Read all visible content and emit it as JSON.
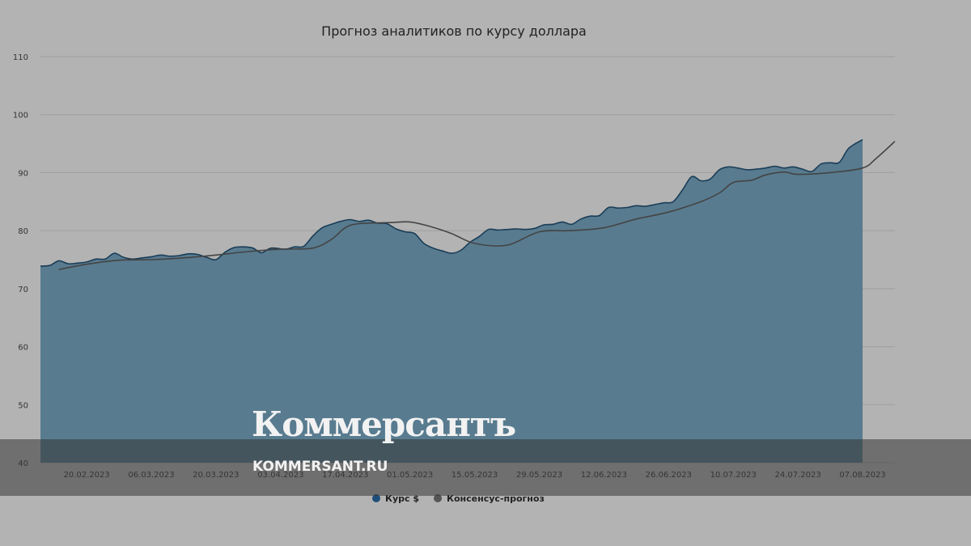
{
  "watermark": {
    "logo": "Коммерсантъ",
    "site": "KOMMERSANT.RU"
  },
  "chart_data": {
    "type": "area",
    "title": "Прогноз аналитиков по курсу доллара",
    "xlabel": "",
    "ylabel": "",
    "ylim": [
      40,
      110
    ],
    "yticks": [
      40,
      50,
      60,
      70,
      80,
      90,
      100,
      110
    ],
    "xlim": [
      "2023-02-10",
      "2023-08-14"
    ],
    "xticks": [
      "20.02.2023",
      "06.03.2023",
      "20.03.2023",
      "03.04.2023",
      "17.04.2023",
      "01.05.2023",
      "15.05.2023",
      "29.05.2023",
      "12.06.2023",
      "26.06.2023",
      "10.07.2023",
      "24.07.2023",
      "07.08.2023"
    ],
    "grid": true,
    "legend_position": "bottom",
    "colors": {
      "area_fill": "#587b8f",
      "area_line": "#1a3d57",
      "forecast_line": "#444444",
      "legend_usd": "#1f4e79",
      "legend_forecast": "#555555"
    },
    "series": [
      {
        "name": "Курс $",
        "kind": "area",
        "points": [
          [
            "2023-02-10",
            73.9
          ],
          [
            "2023-02-12",
            74.0
          ],
          [
            "2023-02-14",
            74.8
          ],
          [
            "2023-02-16",
            74.3
          ],
          [
            "2023-02-18",
            74.4
          ],
          [
            "2023-02-20",
            74.6
          ],
          [
            "2023-02-22",
            75.1
          ],
          [
            "2023-02-24",
            75.1
          ],
          [
            "2023-02-26",
            76.1
          ],
          [
            "2023-02-28",
            75.4
          ],
          [
            "2023-03-02",
            75.1
          ],
          [
            "2023-03-04",
            75.3
          ],
          [
            "2023-03-06",
            75.5
          ],
          [
            "2023-03-08",
            75.8
          ],
          [
            "2023-03-10",
            75.6
          ],
          [
            "2023-03-12",
            75.7
          ],
          [
            "2023-03-14",
            76.0
          ],
          [
            "2023-03-16",
            75.9
          ],
          [
            "2023-03-18",
            75.4
          ],
          [
            "2023-03-20",
            75.0
          ],
          [
            "2023-03-22",
            76.3
          ],
          [
            "2023-03-24",
            77.1
          ],
          [
            "2023-03-26",
            77.2
          ],
          [
            "2023-03-28",
            77.0
          ],
          [
            "2023-03-29",
            76.5
          ],
          [
            "2023-03-30",
            76.2
          ],
          [
            "2023-04-01",
            77.0
          ],
          [
            "2023-04-04",
            76.8
          ],
          [
            "2023-04-06",
            77.2
          ],
          [
            "2023-04-08",
            77.3
          ],
          [
            "2023-04-10",
            79.1
          ],
          [
            "2023-04-12",
            80.5
          ],
          [
            "2023-04-14",
            81.1
          ],
          [
            "2023-04-16",
            81.6
          ],
          [
            "2023-04-18",
            81.9
          ],
          [
            "2023-04-20",
            81.6
          ],
          [
            "2023-04-22",
            81.8
          ],
          [
            "2023-04-24",
            81.3
          ],
          [
            "2023-04-26",
            81.2
          ],
          [
            "2023-04-28",
            80.3
          ],
          [
            "2023-04-30",
            79.8
          ],
          [
            "2023-05-02",
            79.5
          ],
          [
            "2023-05-04",
            77.8
          ],
          [
            "2023-05-06",
            77.0
          ],
          [
            "2023-05-08",
            76.5
          ],
          [
            "2023-05-10",
            76.1
          ],
          [
            "2023-05-12",
            76.6
          ],
          [
            "2023-05-14",
            78.0
          ],
          [
            "2023-05-16",
            79.0
          ],
          [
            "2023-05-18",
            80.2
          ],
          [
            "2023-05-20",
            80.1
          ],
          [
            "2023-05-22",
            80.2
          ],
          [
            "2023-05-24",
            80.3
          ],
          [
            "2023-05-26",
            80.2
          ],
          [
            "2023-05-28",
            80.4
          ],
          [
            "2023-05-30",
            81.0
          ],
          [
            "2023-06-01",
            81.1
          ],
          [
            "2023-06-03",
            81.5
          ],
          [
            "2023-06-05",
            81.1
          ],
          [
            "2023-06-07",
            82.0
          ],
          [
            "2023-06-09",
            82.5
          ],
          [
            "2023-06-11",
            82.6
          ],
          [
            "2023-06-13",
            84.0
          ],
          [
            "2023-06-15",
            83.9
          ],
          [
            "2023-06-17",
            84.0
          ],
          [
            "2023-06-19",
            84.3
          ],
          [
            "2023-06-21",
            84.2
          ],
          [
            "2023-06-23",
            84.5
          ],
          [
            "2023-06-25",
            84.8
          ],
          [
            "2023-06-27",
            85.0
          ],
          [
            "2023-06-29",
            87.0
          ],
          [
            "2023-07-01",
            89.3
          ],
          [
            "2023-07-03",
            88.6
          ],
          [
            "2023-07-05",
            88.9
          ],
          [
            "2023-07-07",
            90.5
          ],
          [
            "2023-07-09",
            91.0
          ],
          [
            "2023-07-11",
            90.8
          ],
          [
            "2023-07-13",
            90.5
          ],
          [
            "2023-07-15",
            90.6
          ],
          [
            "2023-07-17",
            90.8
          ],
          [
            "2023-07-19",
            91.1
          ],
          [
            "2023-07-21",
            90.8
          ],
          [
            "2023-07-23",
            91.0
          ],
          [
            "2023-07-25",
            90.6
          ],
          [
            "2023-07-27",
            90.2
          ],
          [
            "2023-07-29",
            91.5
          ],
          [
            "2023-07-31",
            91.7
          ],
          [
            "2023-08-02",
            91.8
          ],
          [
            "2023-08-04",
            94.2
          ],
          [
            "2023-08-07",
            95.7
          ]
        ]
      },
      {
        "name": "Консенсус-прогноз",
        "kind": "line",
        "points": [
          [
            "2023-02-14",
            73.3
          ],
          [
            "2023-02-20",
            74.2
          ],
          [
            "2023-02-27",
            74.9
          ],
          [
            "2023-03-06",
            75.0
          ],
          [
            "2023-03-13",
            75.3
          ],
          [
            "2023-03-20",
            75.8
          ],
          [
            "2023-03-27",
            76.4
          ],
          [
            "2023-04-03",
            76.8
          ],
          [
            "2023-04-10",
            77.0
          ],
          [
            "2023-04-14",
            78.5
          ],
          [
            "2023-04-17",
            80.5
          ],
          [
            "2023-04-20",
            81.2
          ],
          [
            "2023-04-27",
            81.4
          ],
          [
            "2023-05-01",
            81.5
          ],
          [
            "2023-05-05",
            80.8
          ],
          [
            "2023-05-10",
            79.5
          ],
          [
            "2023-05-15",
            77.8
          ],
          [
            "2023-05-22",
            77.5
          ],
          [
            "2023-05-29",
            79.8
          ],
          [
            "2023-06-05",
            80.0
          ],
          [
            "2023-06-12",
            80.5
          ],
          [
            "2023-06-19",
            82.0
          ],
          [
            "2023-06-26",
            83.2
          ],
          [
            "2023-07-03",
            85.0
          ],
          [
            "2023-07-07",
            86.5
          ],
          [
            "2023-07-10",
            88.3
          ],
          [
            "2023-07-14",
            88.7
          ],
          [
            "2023-07-17",
            89.6
          ],
          [
            "2023-07-21",
            90.1
          ],
          [
            "2023-07-24",
            89.7
          ],
          [
            "2023-07-31",
            90.0
          ],
          [
            "2023-08-07",
            90.8
          ],
          [
            "2023-08-10",
            92.5
          ],
          [
            "2023-08-14",
            95.4
          ]
        ]
      }
    ]
  }
}
